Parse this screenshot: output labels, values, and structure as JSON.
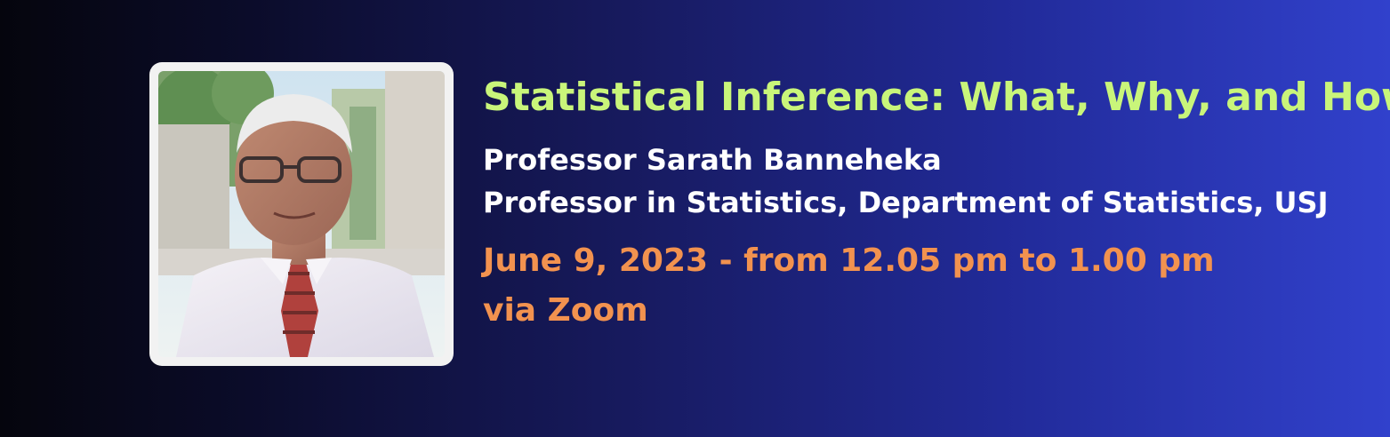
{
  "talk": {
    "title": "Statistical Inference: What, Why, and How",
    "speaker_name": "Professor Sarath Banneheka",
    "speaker_role": "Professor in Statistics, Department of Statistics, USJ",
    "schedule": "June 9, 2023 - from 12.05 pm to 1.00 pm",
    "venue": "via Zoom"
  },
  "colors": {
    "title": "#c9f57a",
    "speaker": "#ffffff",
    "schedule": "#f2924f",
    "background_start": "#05050d",
    "background_end": "#3141cc"
  }
}
